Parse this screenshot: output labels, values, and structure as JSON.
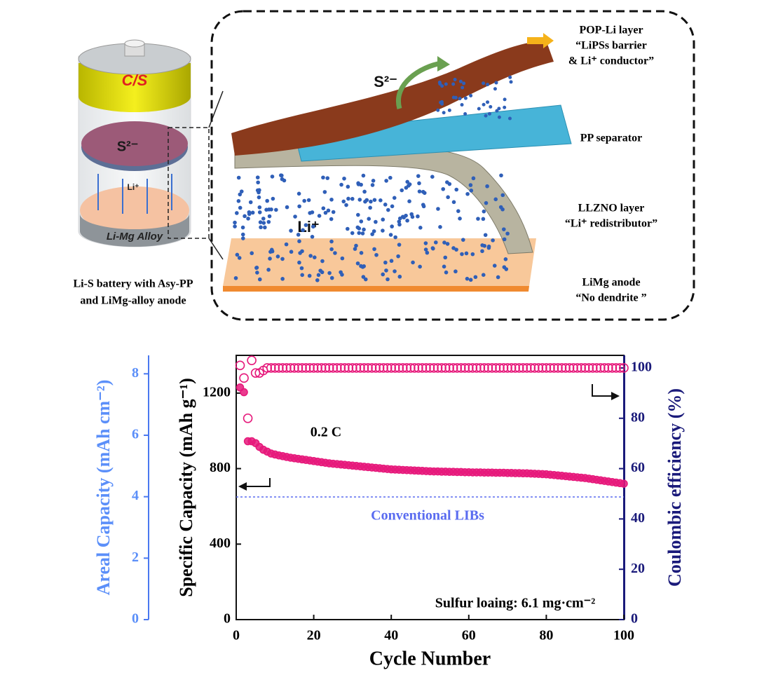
{
  "diagram": {
    "battery_top": "C/S",
    "battery_sulfide": "S²⁻",
    "battery_li": "Li⁺",
    "battery_base": "Li-Mg Alloy",
    "caption": [
      "Li-S battery with Asy-PP",
      "and LiMg-alloy anode"
    ],
    "scheme_sulfide": "S²⁻",
    "scheme_li": "Li⁺",
    "layers": [
      {
        "lines": [
          "POP-Li layer",
          "“LiPSs barrier",
          "& Li⁺ conductor”"
        ]
      },
      {
        "lines": [
          "PP separator"
        ]
      },
      {
        "lines": [
          "LLZNO layer",
          "“Li⁺ redistributor”"
        ]
      },
      {
        "lines": [
          "LiMg anode",
          "“No dendrite ”"
        ]
      }
    ]
  },
  "chart_data": {
    "type": "scatter",
    "xlabel": "Cycle Number",
    "ylabel": "Specific Capacity (mAh g⁻¹)",
    "y2label": "Coulombic efficiency (%)",
    "y3label": "Areal Capacity (mAh cm⁻²)",
    "xlim": [
      0,
      100
    ],
    "xticks": [
      0,
      20,
      40,
      60,
      80,
      100
    ],
    "ylim": [
      0,
      1400
    ],
    "yticks": [
      0,
      400,
      800,
      1200
    ],
    "y2lim": [
      0,
      105
    ],
    "y2ticks": [
      0,
      20,
      40,
      60,
      80,
      100
    ],
    "y3lim": [
      0,
      8.6
    ],
    "y3ticks": [
      0,
      2,
      4,
      6,
      8
    ],
    "annotations": [
      "0.2 C",
      "Sulfur loaing: 6.1 mg·cm⁻²"
    ],
    "reference_line": {
      "label": "Conventional LIBs",
      "value": 650,
      "color": "#5a6cf0"
    },
    "x": [
      1,
      2,
      3,
      4,
      5,
      6,
      7,
      8,
      9,
      10,
      11,
      12,
      13,
      14,
      15,
      16,
      17,
      18,
      19,
      20,
      21,
      22,
      23,
      24,
      25,
      26,
      27,
      28,
      29,
      30,
      31,
      32,
      33,
      34,
      35,
      36,
      37,
      38,
      39,
      40,
      41,
      42,
      43,
      44,
      45,
      46,
      47,
      48,
      49,
      50,
      51,
      52,
      53,
      54,
      55,
      56,
      57,
      58,
      59,
      60,
      61,
      62,
      63,
      64,
      65,
      66,
      67,
      68,
      69,
      70,
      71,
      72,
      73,
      74,
      75,
      76,
      77,
      78,
      79,
      80,
      81,
      82,
      83,
      84,
      85,
      86,
      87,
      88,
      89,
      90,
      91,
      92,
      93,
      94,
      95,
      96,
      97,
      98,
      99,
      100
    ],
    "series": [
      {
        "name": "Specific Capacity",
        "color": "#e6197b",
        "filled": true,
        "values": [
          1230,
          1205,
          945,
          945,
          935,
          915,
          900,
          890,
          880,
          875,
          870,
          866,
          862,
          858,
          855,
          852,
          849,
          846,
          843,
          840,
          837,
          834,
          831,
          828,
          826,
          824,
          822,
          820,
          818,
          816,
          814,
          812,
          810,
          808,
          806,
          804,
          802,
          800,
          798,
          796,
          795,
          794,
          793,
          792,
          791,
          790,
          789,
          788,
          787,
          786,
          785,
          785,
          784,
          784,
          783,
          783,
          782,
          782,
          781,
          781,
          780,
          780,
          780,
          779,
          779,
          779,
          778,
          778,
          778,
          777,
          777,
          776,
          776,
          775,
          775,
          774,
          773,
          772,
          771,
          770,
          768,
          766,
          764,
          762,
          760,
          758,
          756,
          754,
          752,
          750,
          747,
          744,
          741,
          738,
          735,
          732,
          729,
          726,
          723,
          720
        ]
      },
      {
        "name": "Coulombic efficiency",
        "color": "#e6197b",
        "filled": false,
        "axis": "y2",
        "values": [
          101,
          96,
          80,
          103,
          98,
          98,
          99,
          100,
          100,
          100,
          100,
          100,
          100,
          100,
          100,
          100,
          100,
          100,
          100,
          100,
          100,
          100,
          100,
          100,
          100,
          100,
          100,
          100,
          100,
          100,
          100,
          100,
          100,
          100,
          100,
          100,
          100,
          100,
          100,
          100,
          100,
          100,
          100,
          100,
          100,
          100,
          100,
          100,
          100,
          100,
          100,
          100,
          100,
          100,
          100,
          100,
          100,
          100,
          100,
          100,
          100,
          100,
          100,
          100,
          100,
          100,
          100,
          100,
          100,
          100,
          100,
          100,
          100,
          100,
          100,
          100,
          100,
          100,
          100,
          100,
          100,
          100,
          100,
          100,
          100,
          100,
          100,
          100,
          100,
          100,
          100,
          100,
          100,
          100,
          100,
          100,
          100,
          100,
          100,
          100
        ]
      }
    ]
  }
}
